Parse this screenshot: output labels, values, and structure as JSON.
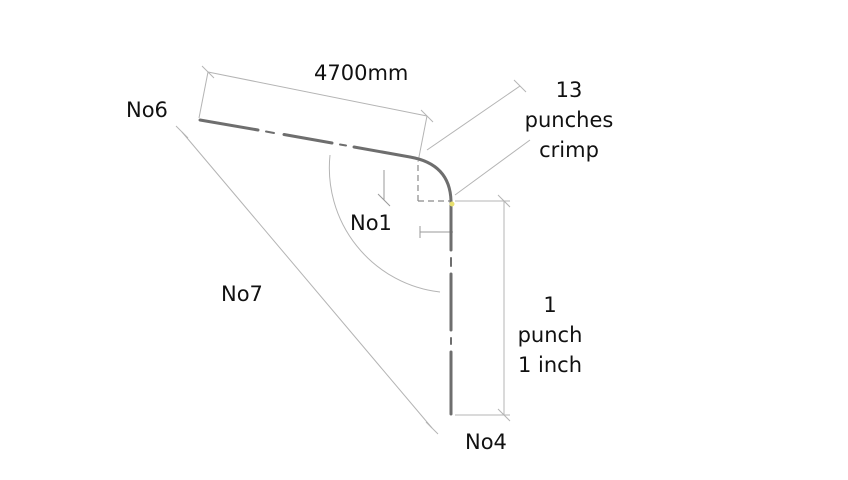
{
  "labels": {
    "length": "4700mm",
    "bend_start": "No6",
    "bend_end": "No4",
    "angle_point": "No1",
    "diagonal": "No7"
  },
  "crimp_note": [
    "13",
    "punches",
    "crimp"
  ],
  "punch_note": [
    "1",
    "punch",
    "1 inch"
  ],
  "colors": {
    "ink": "#111111",
    "dimension_line": "#b4b4b4",
    "tube": "#6e6e6e",
    "dash": "#8a8a8a",
    "marker": "#e8e070"
  }
}
